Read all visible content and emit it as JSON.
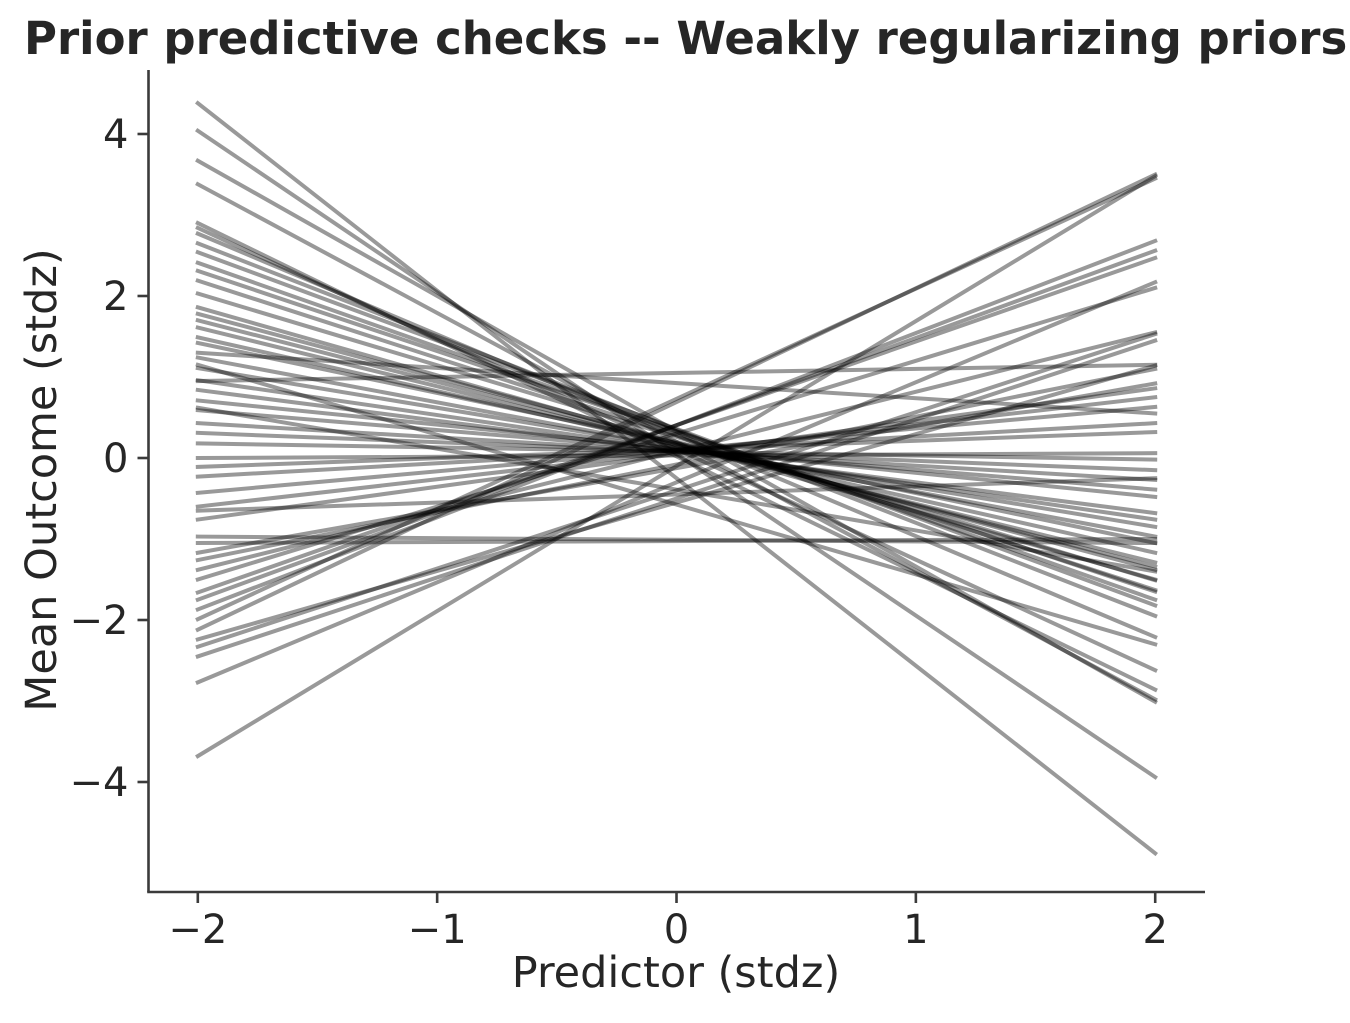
{
  "chart_data": {
    "type": "line",
    "title": "Prior predictive checks -- Weakly regularizing priors",
    "xlabel": "Predictor (stdz)",
    "ylabel": "Mean Outcome (stdz)",
    "x_range": [
      -2,
      2
    ],
    "xlim": [
      -2.206,
      2.208
    ],
    "ylim": [
      -5.358,
      4.79
    ],
    "x_tick_values": [
      -2,
      -1,
      0,
      1,
      2
    ],
    "x_tick_labels": [
      "−2",
      "−1",
      "0",
      "1",
      "2"
    ],
    "y_tick_values": [
      -4,
      -2,
      0,
      2,
      4
    ],
    "y_tick_labels": [
      "−4",
      "−2",
      "0",
      "2",
      "4"
    ],
    "grid": false,
    "legend": "none",
    "line_color": "#000000",
    "line_opacity": 0.4,
    "line_width": 4,
    "axis_color": "#3b3b3b",
    "text_color": "#262626",
    "lines_note": "each entry is [y at x=-2, y at x=+2], straight segments",
    "lines": [
      [
        4.38,
        -4.88
      ],
      [
        4.04,
        -3.94
      ],
      [
        3.67,
        -3.01
      ],
      [
        3.38,
        -2.98
      ],
      [
        2.9,
        -2.86
      ],
      [
        2.84,
        -2.62
      ],
      [
        2.77,
        -2.21
      ],
      [
        2.65,
        -1.95
      ],
      [
        2.54,
        -1.82
      ],
      [
        2.41,
        -1.75
      ],
      [
        2.31,
        -1.65
      ],
      [
        2.19,
        -1.63
      ],
      [
        2.03,
        -1.51
      ],
      [
        1.86,
        -1.5
      ],
      [
        1.78,
        -1.38
      ],
      [
        1.7,
        -1.34
      ],
      [
        1.61,
        -1.29
      ],
      [
        1.49,
        -1.17
      ],
      [
        1.42,
        -1.05
      ],
      [
        1.3,
        0.55
      ],
      [
        1.24,
        -0.97
      ],
      [
        1.15,
        -2.3
      ],
      [
        1.11,
        -0.85
      ],
      [
        0.96,
        -0.76
      ],
      [
        0.95,
        1.15
      ],
      [
        0.84,
        -0.68
      ],
      [
        0.71,
        -0.48
      ],
      [
        0.62,
        -1.4
      ],
      [
        0.59,
        -0.39
      ],
      [
        0.43,
        -0.27
      ],
      [
        0.31,
        -0.15
      ],
      [
        0.18,
        -0.02
      ],
      [
        0.0,
        0.06
      ],
      [
        -0.11,
        0.32
      ],
      [
        -0.23,
        0.43
      ],
      [
        -0.43,
        0.63
      ],
      [
        -0.6,
        0.75
      ],
      [
        -0.65,
        -0.25
      ],
      [
        -0.76,
        0.86
      ],
      [
        -0.97,
        -1.05
      ],
      [
        -1.05,
        -1.0
      ],
      [
        -1.17,
        0.92
      ],
      [
        -1.26,
        1.1
      ],
      [
        -1.38,
        1.55
      ],
      [
        -1.5,
        2.1
      ],
      [
        -1.66,
        2.47
      ],
      [
        -1.75,
        2.56
      ],
      [
        -1.87,
        2.68
      ],
      [
        -1.99,
        3.45
      ],
      [
        -2.12,
        3.5
      ],
      [
        -2.24,
        1.14
      ],
      [
        -2.33,
        1.53
      ],
      [
        -2.45,
        1.45
      ],
      [
        -2.77,
        2.17
      ],
      [
        -3.68,
        3.48
      ]
    ]
  }
}
